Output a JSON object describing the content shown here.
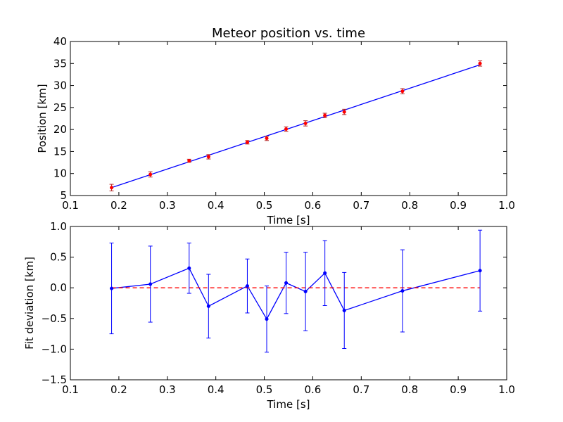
{
  "chart_data": [
    {
      "type": "scatter",
      "title": "Meteor position vs. time",
      "xlabel": "Time [s]",
      "ylabel": "Position [km]",
      "xlim": [
        0.1,
        1.0
      ],
      "ylim": [
        5,
        40
      ],
      "xticks": [
        "0.1",
        "0.2",
        "0.3",
        "0.4",
        "0.5",
        "0.6",
        "0.7",
        "0.8",
        "0.9",
        "1.0"
      ],
      "yticks": [
        "5",
        "10",
        "15",
        "20",
        "25",
        "30",
        "35",
        "40"
      ],
      "grid": false,
      "series": [
        {
          "kind": "errorbar-points",
          "color": "#ff0000",
          "x": [
            0.185,
            0.265,
            0.345,
            0.385,
            0.465,
            0.505,
            0.545,
            0.585,
            0.625,
            0.665,
            0.785,
            0.945
          ],
          "y": [
            6.8,
            9.8,
            12.9,
            13.8,
            17.1,
            18.0,
            20.1,
            21.4,
            23.2,
            24.0,
            28.7,
            35.0
          ],
          "err": [
            0.75,
            0.6,
            0.35,
            0.5,
            0.4,
            0.5,
            0.5,
            0.6,
            0.5,
            0.6,
            0.6,
            0.6
          ]
        },
        {
          "kind": "fit-line",
          "color": "#0000ff",
          "x": [
            0.185,
            0.945
          ],
          "y": [
            6.8,
            34.7
          ]
        }
      ]
    },
    {
      "type": "line",
      "title": "",
      "xlabel": "Time [s]",
      "ylabel": "Fit deviation [km]",
      "xlim": [
        0.1,
        1.0
      ],
      "ylim": [
        -1.5,
        1.0
      ],
      "xticks": [
        "0.1",
        "0.2",
        "0.3",
        "0.4",
        "0.5",
        "0.6",
        "0.7",
        "0.8",
        "0.9",
        "1.0"
      ],
      "yticks": [
        "−1.5",
        "−1.0",
        "−0.5",
        "0.0",
        "0.5",
        "1.0"
      ],
      "grid": false,
      "series": [
        {
          "kind": "errorbar-line",
          "color": "#0000ff",
          "x": [
            0.185,
            0.265,
            0.345,
            0.385,
            0.465,
            0.505,
            0.545,
            0.585,
            0.625,
            0.665,
            0.785,
            0.945
          ],
          "y": [
            -0.01,
            0.06,
            0.32,
            -0.3,
            0.03,
            -0.51,
            0.08,
            -0.06,
            0.24,
            -0.37,
            -0.05,
            0.28
          ],
          "err": [
            0.74,
            0.62,
            0.41,
            0.52,
            0.44,
            0.54,
            0.5,
            0.64,
            0.53,
            0.62,
            0.67,
            0.66
          ]
        },
        {
          "kind": "zero-line",
          "color": "#ff0000",
          "style": "dashed",
          "x": [
            0.185,
            0.945
          ],
          "y": [
            0,
            0
          ]
        }
      ]
    }
  ]
}
